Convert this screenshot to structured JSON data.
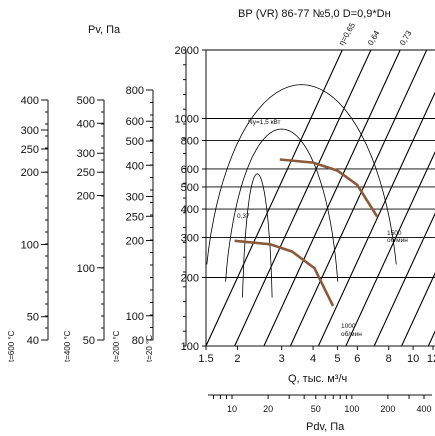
{
  "chart_data": {
    "type": "line",
    "title": "ВР (VR) 86-77 №5,0 D=0,9*Dн",
    "xlabel": "Q, тыс. м³/ч",
    "ylabel": "Pv, Па",
    "x_scale": "log",
    "y_scale": "log",
    "xlim": [
      1.5,
      12
    ],
    "ylim": [
      100,
      2000
    ],
    "x_ticks": [
      "1.5",
      "2",
      "3",
      "4",
      "5",
      "6",
      "8",
      "10",
      "12"
    ],
    "y_ticks": [
      "100",
      "200",
      "300",
      "400",
      "500",
      "600",
      "800",
      "1000",
      "2000"
    ],
    "series": [
      {
        "name": "1500 об/мин",
        "x": [
          2.95,
          4.0,
          5.0,
          6.0,
          7.2
        ],
        "y": [
          660,
          640,
          590,
          510,
          370
        ]
      },
      {
        "name": "1000 об/мин",
        "x": [
          1.95,
          2.7,
          3.3,
          4.05,
          4.8
        ],
        "y": [
          290,
          280,
          260,
          220,
          150
        ]
      }
    ],
    "curve_labels": [
      {
        "rpm": "1500",
        "unit": "об/мин"
      },
      {
        "rpm": "1000",
        "unit": "об/мин"
      }
    ],
    "efficiency_labels": [
      "η=0,65",
      "0,64",
      "0,73"
    ],
    "power_labels": [
      "Nу=1,5 кВт",
      "0,37"
    ],
    "temperature_scales": [
      {
        "label": "t=600 °C",
        "ticks": [
          "400",
          "300",
          "250",
          "200",
          "100",
          "50",
          "40"
        ]
      },
      {
        "label": "t=400 °C",
        "ticks": [
          "500",
          "400",
          "300",
          "250",
          "200",
          "100",
          "50"
        ]
      },
      {
        "label": "t=200 °C",
        "ticks": [
          "800",
          "600",
          "500",
          "400",
          "300",
          "250",
          "200",
          "100",
          "80"
        ]
      },
      {
        "label": "t=20 °C",
        "ticks": []
      }
    ],
    "dynamic_pressure_axis": {
      "label": "Pdv, Па",
      "ticks": [
        "10",
        "20",
        "50",
        "100",
        "200",
        "400"
      ]
    },
    "grid": true
  }
}
